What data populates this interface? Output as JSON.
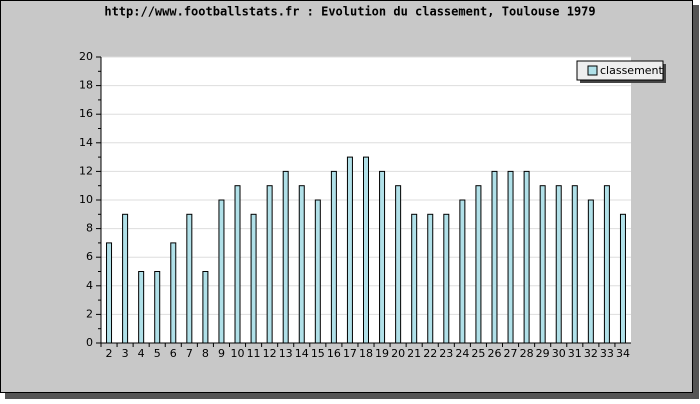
{
  "chart_data": {
    "type": "bar",
    "title": "http://www.footballstats.fr : Evolution du classement, Toulouse 1979",
    "categories": [
      "2",
      "3",
      "4",
      "5",
      "6",
      "7",
      "8",
      "9",
      "10",
      "11",
      "12",
      "13",
      "14",
      "15",
      "16",
      "17",
      "18",
      "19",
      "20",
      "21",
      "22",
      "23",
      "24",
      "25",
      "26",
      "27",
      "28",
      "29",
      "30",
      "31",
      "32",
      "33",
      "34"
    ],
    "series": [
      {
        "name": "classement",
        "color": "#b0e0e8",
        "values": [
          7,
          9,
          5,
          5,
          7,
          9,
          5,
          10,
          11,
          9,
          11,
          12,
          11,
          10,
          12,
          13,
          13,
          12,
          11,
          9,
          9,
          9,
          10,
          11,
          12,
          12,
          12,
          11,
          11,
          11,
          10,
          11,
          9
        ]
      }
    ],
    "ylim": [
      0,
      20
    ],
    "yticks": [
      0,
      2,
      4,
      6,
      8,
      10,
      12,
      14,
      16,
      18,
      20
    ],
    "grid": true,
    "legend": "top-right"
  }
}
